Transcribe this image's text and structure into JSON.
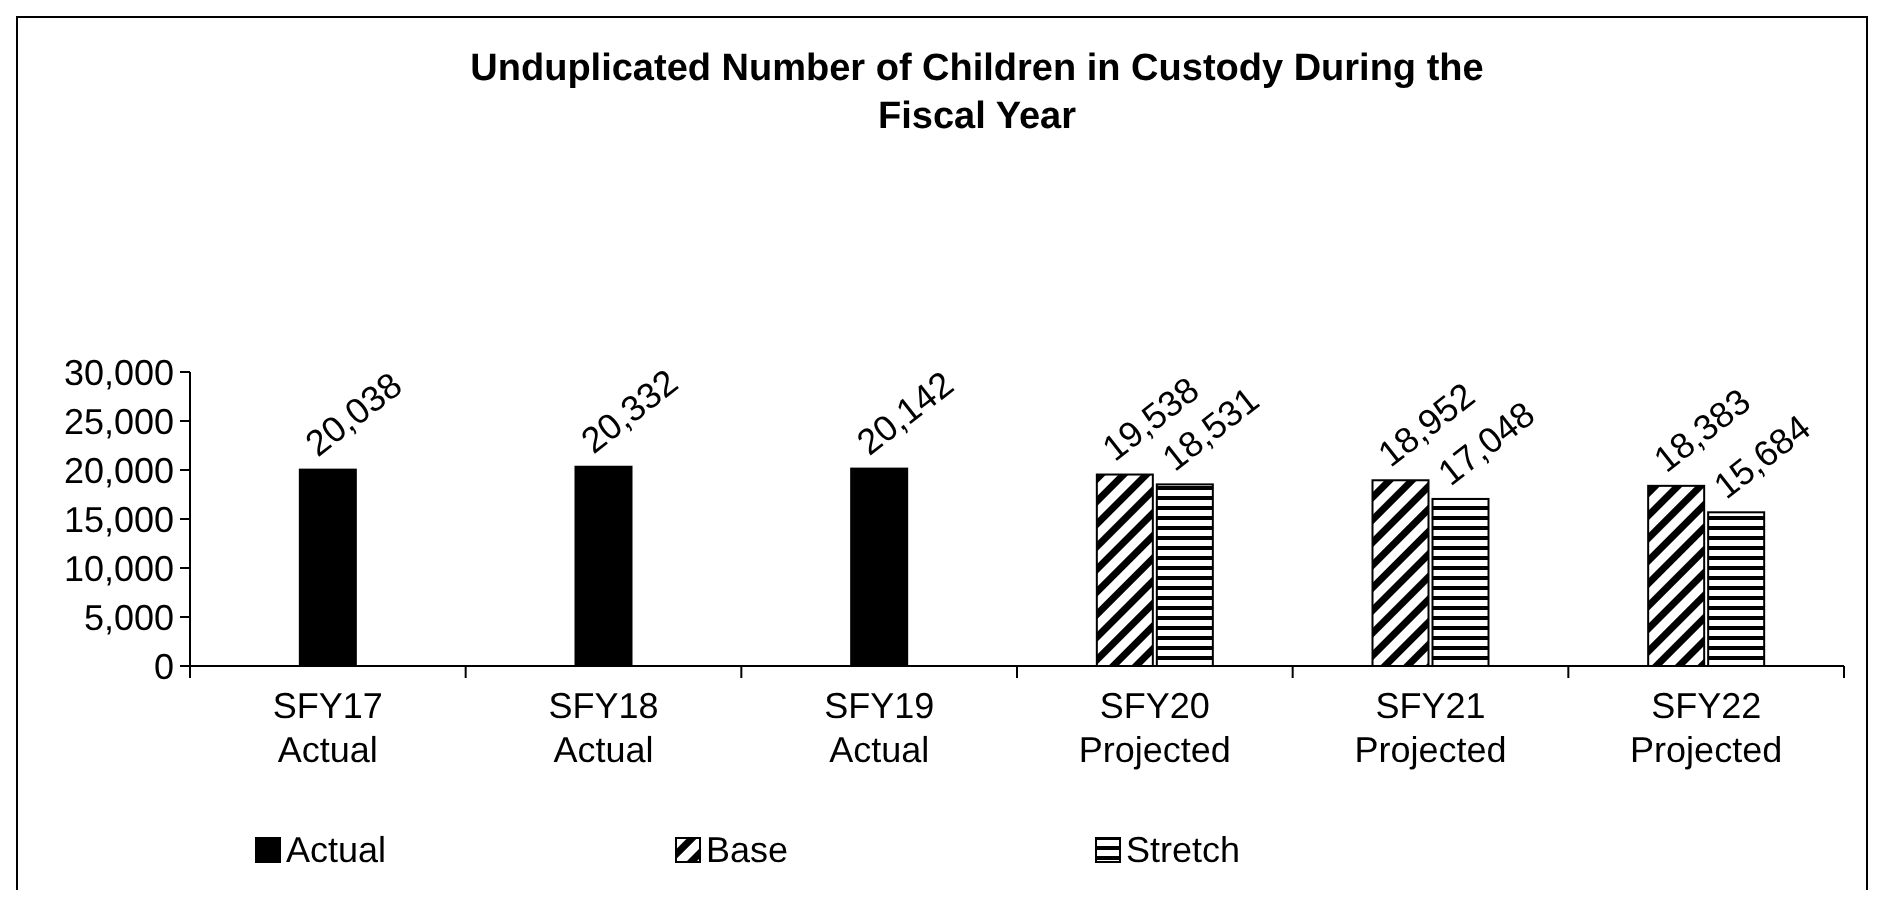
{
  "chart_data": {
    "type": "bar",
    "title": "Unduplicated Number of Children in Custody During the Fiscal Year",
    "categories": [
      "SFY17 Actual",
      "SFY18 Actual",
      "SFY19 Actual",
      "SFY20 Projected",
      "SFY21 Projected",
      "SFY22 Projected"
    ],
    "series": [
      {
        "name": "Actual",
        "color": "#000000",
        "values": [
          20038,
          20332,
          20142,
          null,
          null,
          null
        ],
        "value_labels": [
          "20,038",
          "20,332",
          "20,142",
          null,
          null,
          null
        ]
      },
      {
        "name": "Base",
        "color": "#000000",
        "values": [
          null,
          null,
          null,
          19538,
          18952,
          18383
        ],
        "value_labels": [
          null,
          null,
          null,
          "19,538",
          "18,952",
          "18,383"
        ]
      },
      {
        "name": "Stretch",
        "color": "#000000",
        "values": [
          null,
          null,
          null,
          18531,
          17048,
          15684
        ],
        "value_labels": [
          null,
          null,
          null,
          "18,531",
          "17,048",
          "15,684"
        ]
      }
    ],
    "ylim": [
      0,
      30000
    ],
    "yticks": [
      0,
      {
        "value": 5000,
        "label": "5,000"
      },
      {
        "value": 10000,
        "label": "10,000"
      },
      {
        "value": 15000,
        "label": "15,000"
      },
      {
        "value": 20000,
        "label": "20,000"
      },
      {
        "value": 25000,
        "label": "25,000"
      },
      {
        "value": 30000,
        "label": "30,000"
      }
    ],
    "grid": false,
    "legend": "bottom"
  }
}
